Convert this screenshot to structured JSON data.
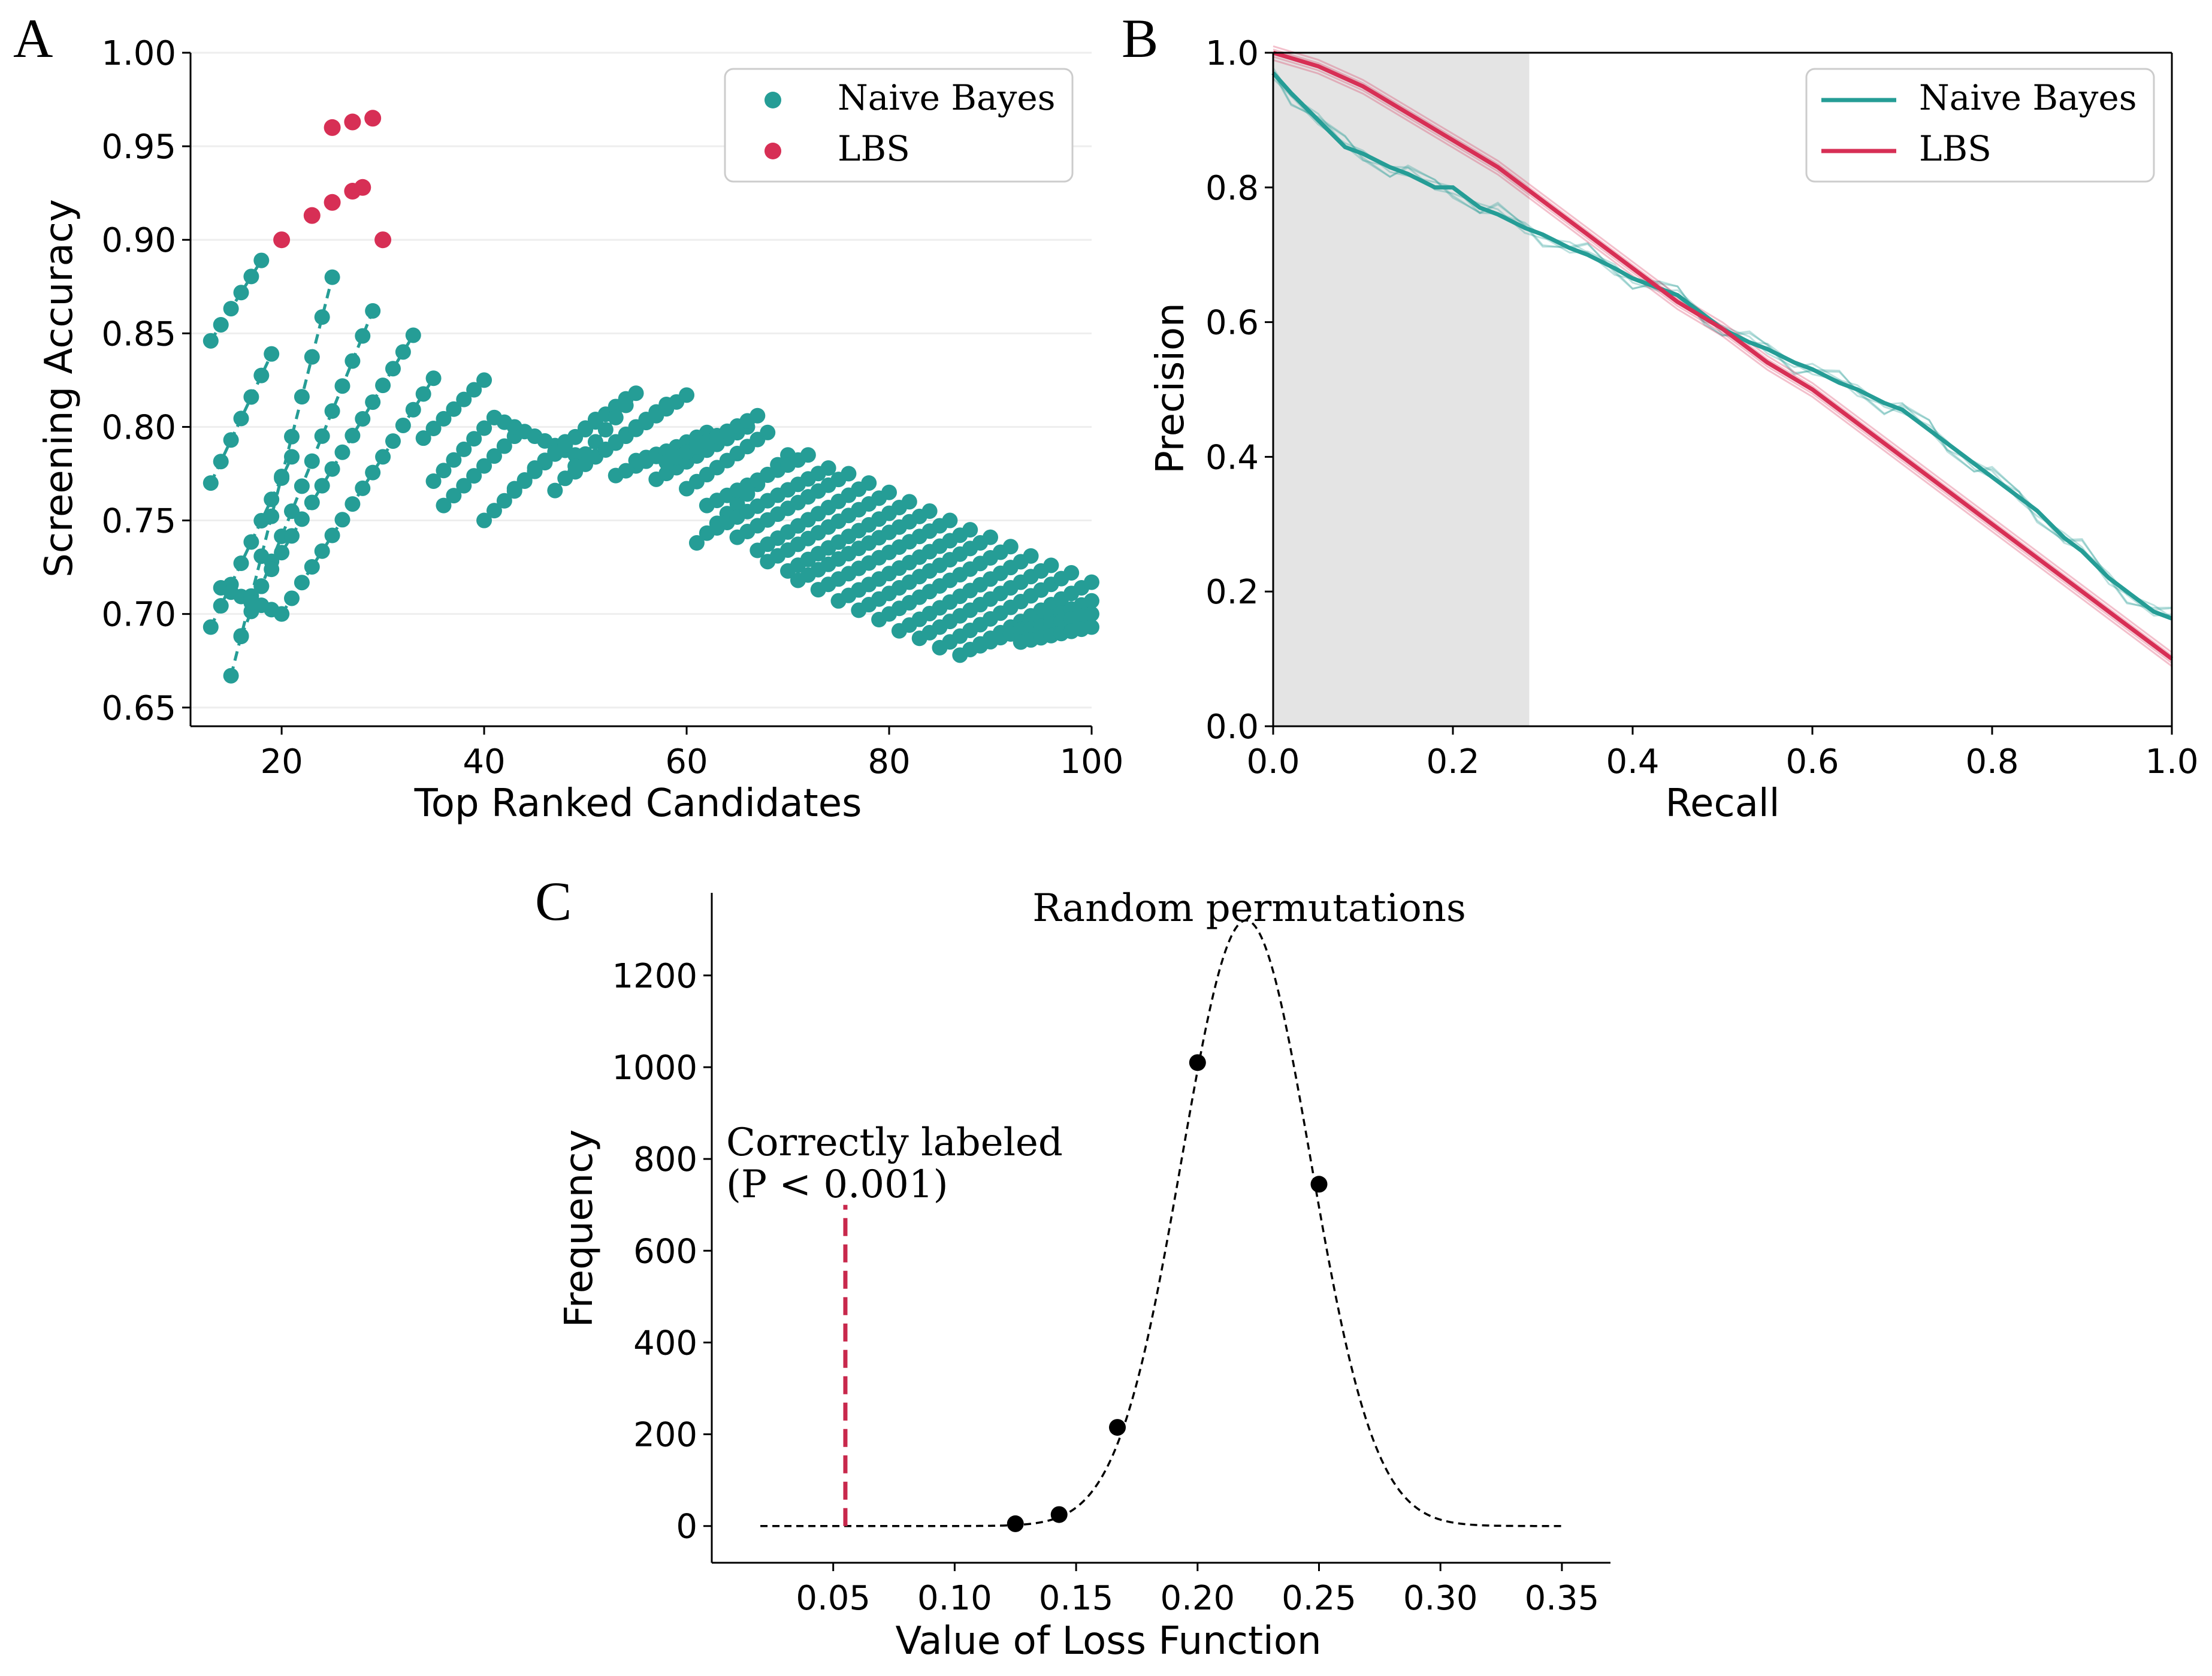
{
  "colors": {
    "teal": "#259D96",
    "crimson": "#D72F55",
    "shade": "#e4e4e4",
    "red_dash": "#C8284C"
  },
  "panels": {
    "a": "A",
    "b": "B",
    "c": "C"
  },
  "chart_data": [
    {
      "id": "A",
      "type": "scatter",
      "title": "",
      "xlabel": "Top Ranked Candidates",
      "ylabel": "Screening Accuracy",
      "xlim": [
        11,
        100
      ],
      "ylim": [
        0.64,
        1.0
      ],
      "xticks": [
        20,
        40,
        60,
        80,
        100
      ],
      "yticks": [
        0.65,
        0.7,
        0.75,
        0.8,
        0.85,
        0.9,
        0.95,
        1.0
      ],
      "ytick_labels": [
        "0.65",
        "0.70",
        "0.75",
        "0.80",
        "0.85",
        "0.90",
        "0.95",
        "1.00"
      ],
      "grid": "horizontal",
      "legend": {
        "position": "top-right",
        "entries": [
          "Naive Bayes",
          "LBS"
        ]
      },
      "series": [
        {
          "name": "Naive Bayes",
          "style": "markers with dashed connectors",
          "runs": [
            {
              "x": [
                13,
                18
              ],
              "y": [
                0.846,
                0.889
              ]
            },
            {
              "x": [
                13,
                19
              ],
              "y": [
                0.77,
                0.839
              ]
            },
            {
              "x": [
                13,
                21
              ],
              "y": [
                0.693,
                0.784
              ]
            },
            {
              "x": [
                14,
                20
              ],
              "y": [
                0.714,
                0.7
              ]
            },
            {
              "x": [
                15,
                25
              ],
              "y": [
                0.667,
                0.88
              ]
            },
            {
              "x": [
                16,
                29
              ],
              "y": [
                0.688,
                0.862
              ]
            },
            {
              "x": [
                17,
                33
              ],
              "y": [
                0.706,
                0.849
              ]
            },
            {
              "x": [
                20,
                35
              ],
              "y": [
                0.7,
                0.826
              ]
            },
            {
              "x": [
                34,
                40
              ],
              "y": [
                0.794,
                0.825
              ]
            },
            {
              "x": [
                35,
                41
              ],
              "y": [
                0.771,
                0.805
              ]
            },
            {
              "x": [
                36,
                43
              ],
              "y": [
                0.758,
                0.795
              ]
            },
            {
              "x": [
                40,
                48
              ],
              "y": [
                0.75,
                0.792
              ]
            },
            {
              "x": [
                41,
                49
              ],
              "y": [
                0.805,
                0.785
              ]
            },
            {
              "x": [
                43,
                51
              ],
              "y": [
                0.767,
                0.804
              ]
            },
            {
              "x": [
                45,
                54
              ],
              "y": [
                0.778,
                0.815
              ]
            },
            {
              "x": [
                47,
                55
              ],
              "y": [
                0.766,
                0.818
              ]
            },
            {
              "x": [
                49,
                58
              ],
              "y": [
                0.776,
                0.812
              ]
            },
            {
              "x": [
                51,
                60
              ],
              "y": [
                0.784,
                0.817
              ]
            },
            {
              "x": [
                53,
                62
              ],
              "y": [
                0.774,
                0.797
              ]
            },
            {
              "x": [
                55,
                64
              ],
              "y": [
                0.782,
                0.797
              ]
            },
            {
              "x": [
                57,
                66
              ],
              "y": [
                0.772,
                0.8
              ]
            },
            {
              "x": [
                58,
                67
              ],
              "y": [
                0.781,
                0.806
              ]
            },
            {
              "x": [
                60,
                68
              ],
              "y": [
                0.767,
                0.797
              ]
            },
            {
              "x": [
                61,
                70
              ],
              "y": [
                0.738,
                0.785
              ]
            },
            {
              "x": [
                62,
                72
              ],
              "y": [
                0.758,
                0.785
              ]
            },
            {
              "x": [
                63,
                74
              ],
              "y": [
                0.746,
                0.778
              ]
            },
            {
              "x": [
                65,
                76
              ],
              "y": [
                0.741,
                0.775
              ]
            },
            {
              "x": [
                67,
                78
              ],
              "y": [
                0.734,
                0.77
              ]
            },
            {
              "x": [
                68,
                80
              ],
              "y": [
                0.728,
                0.765
              ]
            },
            {
              "x": [
                70,
                82
              ],
              "y": [
                0.723,
                0.76
              ]
            },
            {
              "x": [
                71,
                84
              ],
              "y": [
                0.718,
                0.755
              ]
            },
            {
              "x": [
                73,
                86
              ],
              "y": [
                0.713,
                0.75
              ]
            },
            {
              "x": [
                75,
                88
              ],
              "y": [
                0.707,
                0.745
              ]
            },
            {
              "x": [
                77,
                90
              ],
              "y": [
                0.702,
                0.741
              ]
            },
            {
              "x": [
                79,
                92
              ],
              "y": [
                0.697,
                0.736
              ]
            },
            {
              "x": [
                81,
                94
              ],
              "y": [
                0.691,
                0.731
              ]
            },
            {
              "x": [
                83,
                96
              ],
              "y": [
                0.687,
                0.726
              ]
            },
            {
              "x": [
                85,
                98
              ],
              "y": [
                0.682,
                0.722
              ]
            },
            {
              "x": [
                87,
                100
              ],
              "y": [
                0.678,
                0.717
              ]
            },
            {
              "x": [
                89,
                100
              ],
              "y": [
                0.683,
                0.707
              ]
            },
            {
              "x": [
                91,
                100
              ],
              "y": [
                0.688,
                0.7
              ]
            },
            {
              "x": [
                93,
                100
              ],
              "y": [
                0.685,
                0.693
              ]
            }
          ]
        },
        {
          "name": "LBS",
          "x": [
            20,
            23,
            25,
            25,
            27,
            27,
            28,
            29,
            30
          ],
          "y": [
            0.9,
            0.913,
            0.96,
            0.92,
            0.963,
            0.926,
            0.928,
            0.965,
            0.9
          ]
        }
      ]
    },
    {
      "id": "B",
      "type": "line",
      "title": "",
      "xlabel": "Recall",
      "ylabel": "Precision",
      "xlim": [
        0.0,
        1.0
      ],
      "ylim": [
        0.0,
        1.0
      ],
      "xticks": [
        0.0,
        0.2,
        0.4,
        0.6,
        0.8,
        1.0
      ],
      "xtick_labels": [
        "0.0",
        "0.2",
        "0.4",
        "0.6",
        "0.8",
        "1.0"
      ],
      "yticks": [
        0.0,
        0.2,
        0.4,
        0.6,
        0.8,
        1.0
      ],
      "ytick_labels": [
        "0.0",
        "0.2",
        "0.4",
        "0.6",
        "0.8",
        "1.0"
      ],
      "shaded_region_x": [
        0.0,
        0.285
      ],
      "legend": {
        "position": "top-right",
        "entries": [
          "Naive Bayes",
          "LBS"
        ]
      },
      "series": [
        {
          "name": "Naive Bayes",
          "x": [
            0.0,
            0.02,
            0.05,
            0.08,
            0.1,
            0.13,
            0.15,
            0.18,
            0.2,
            0.23,
            0.25,
            0.28,
            0.3,
            0.33,
            0.35,
            0.38,
            0.4,
            0.43,
            0.45,
            0.48,
            0.5,
            0.53,
            0.55,
            0.58,
            0.6,
            0.63,
            0.65,
            0.68,
            0.7,
            0.73,
            0.75,
            0.78,
            0.8,
            0.83,
            0.85,
            0.88,
            0.9,
            0.93,
            0.95,
            0.98,
            1.0
          ],
          "y": [
            0.97,
            0.94,
            0.9,
            0.86,
            0.85,
            0.83,
            0.82,
            0.8,
            0.8,
            0.77,
            0.76,
            0.74,
            0.73,
            0.71,
            0.7,
            0.68,
            0.665,
            0.65,
            0.64,
            0.61,
            0.59,
            0.57,
            0.56,
            0.54,
            0.53,
            0.51,
            0.5,
            0.48,
            0.47,
            0.44,
            0.42,
            0.39,
            0.37,
            0.34,
            0.32,
            0.28,
            0.26,
            0.22,
            0.2,
            0.17,
            0.16
          ]
        },
        {
          "name": "LBS",
          "x": [
            0.0,
            0.05,
            0.1,
            0.15,
            0.2,
            0.25,
            0.3,
            0.35,
            0.4,
            0.45,
            0.5,
            0.55,
            0.6,
            0.65,
            0.7,
            0.75,
            0.8,
            0.85,
            0.9,
            0.95,
            1.0
          ],
          "y": [
            1.0,
            0.98,
            0.95,
            0.91,
            0.87,
            0.83,
            0.78,
            0.73,
            0.68,
            0.63,
            0.59,
            0.54,
            0.5,
            0.45,
            0.4,
            0.35,
            0.3,
            0.25,
            0.2,
            0.15,
            0.1
          ]
        }
      ]
    },
    {
      "id": "C",
      "type": "line",
      "title": "Random permutations",
      "xlabel": "Value of Loss Function",
      "ylabel": "Frequency",
      "xlim": [
        0.0,
        0.37
      ],
      "ylim": [
        -80,
        1380
      ],
      "xticks": [
        0.05,
        0.1,
        0.15,
        0.2,
        0.25,
        0.3,
        0.35
      ],
      "xtick_labels": [
        "0.05",
        "0.10",
        "0.15",
        "0.20",
        "0.25",
        "0.30",
        "0.35"
      ],
      "yticks": [
        0,
        200,
        400,
        600,
        800,
        1000,
        1200
      ],
      "ytick_labels": [
        "0",
        "200",
        "400",
        "600",
        "800",
        "1000",
        "1200"
      ],
      "curve": {
        "kind": "gaussian",
        "mean": 0.22,
        "sd": 0.0265,
        "peak": 1320,
        "x_range": [
          0.02,
          0.35
        ]
      },
      "points": {
        "x": [
          0.125,
          0.143,
          0.167,
          0.2,
          0.25
        ],
        "y": [
          5,
          25,
          215,
          1010,
          745
        ]
      },
      "reference_line": {
        "x": 0.055,
        "y_range": [
          0,
          700
        ]
      },
      "annotation": [
        "Correctly labeled",
        "(P < 0.001)"
      ]
    }
  ]
}
